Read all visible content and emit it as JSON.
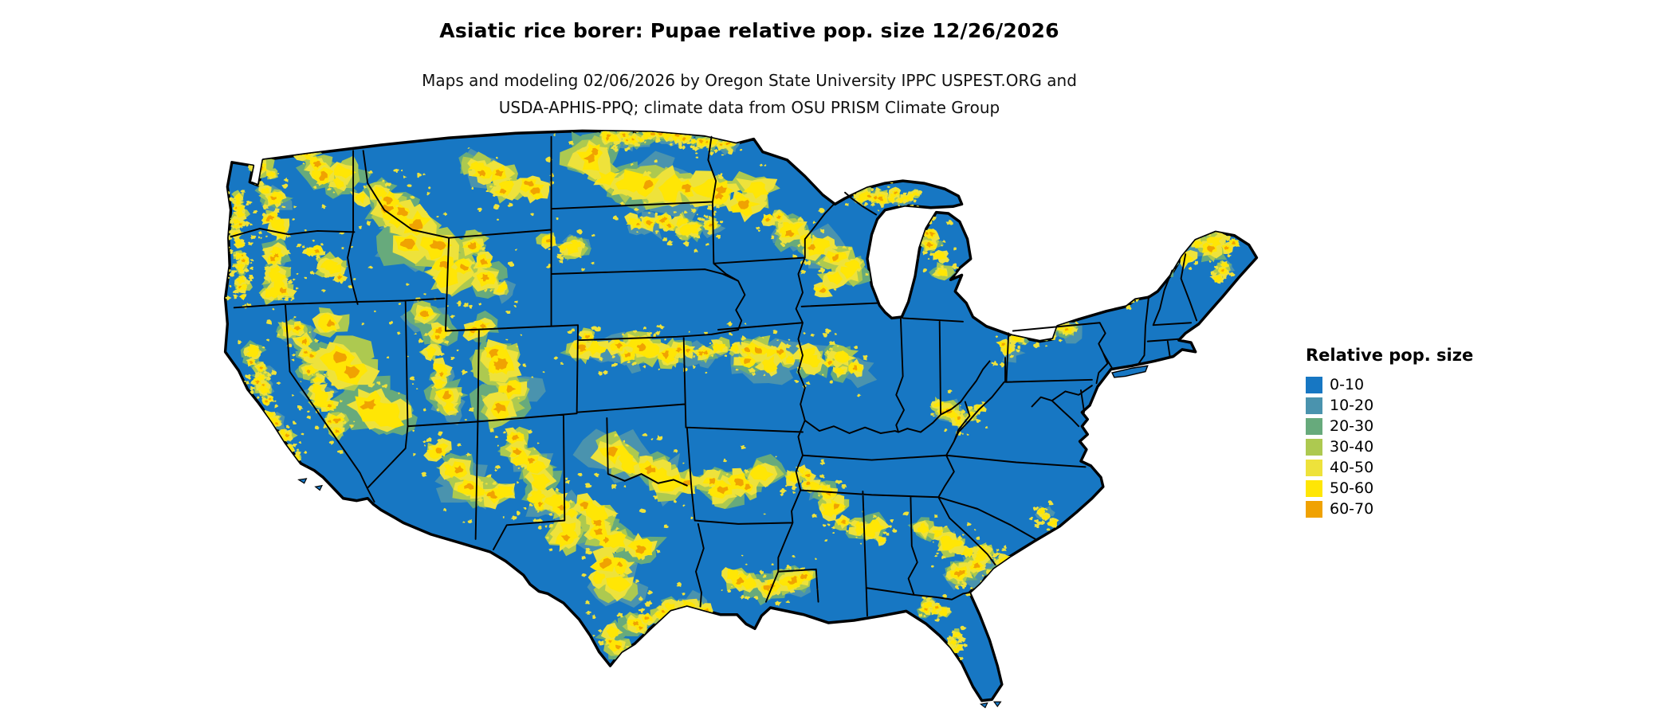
{
  "title": "Asiatic rice borer: Pupae relative pop. size 12/26/2026",
  "subtitle_line1": "Maps and modeling 02/06/2026 by Oregon State University IPPC USPEST.ORG and",
  "subtitle_line2": "USDA-APHIS-PPQ; climate data from OSU PRISM Climate Group",
  "legend": {
    "title": "Relative pop. size",
    "items": [
      {
        "label": "0-10",
        "color": "#1777c3"
      },
      {
        "label": "10-20",
        "color": "#4a93ae"
      },
      {
        "label": "20-30",
        "color": "#67aa7c"
      },
      {
        "label": "30-40",
        "color": "#adc950"
      },
      {
        "label": "40-50",
        "color": "#eee23b"
      },
      {
        "label": "50-60",
        "color": "#ffe605"
      },
      {
        "label": "60-70",
        "color": "#f0a202"
      }
    ]
  },
  "map": {
    "region": "Continental United States",
    "border_color": "#000000"
  }
}
